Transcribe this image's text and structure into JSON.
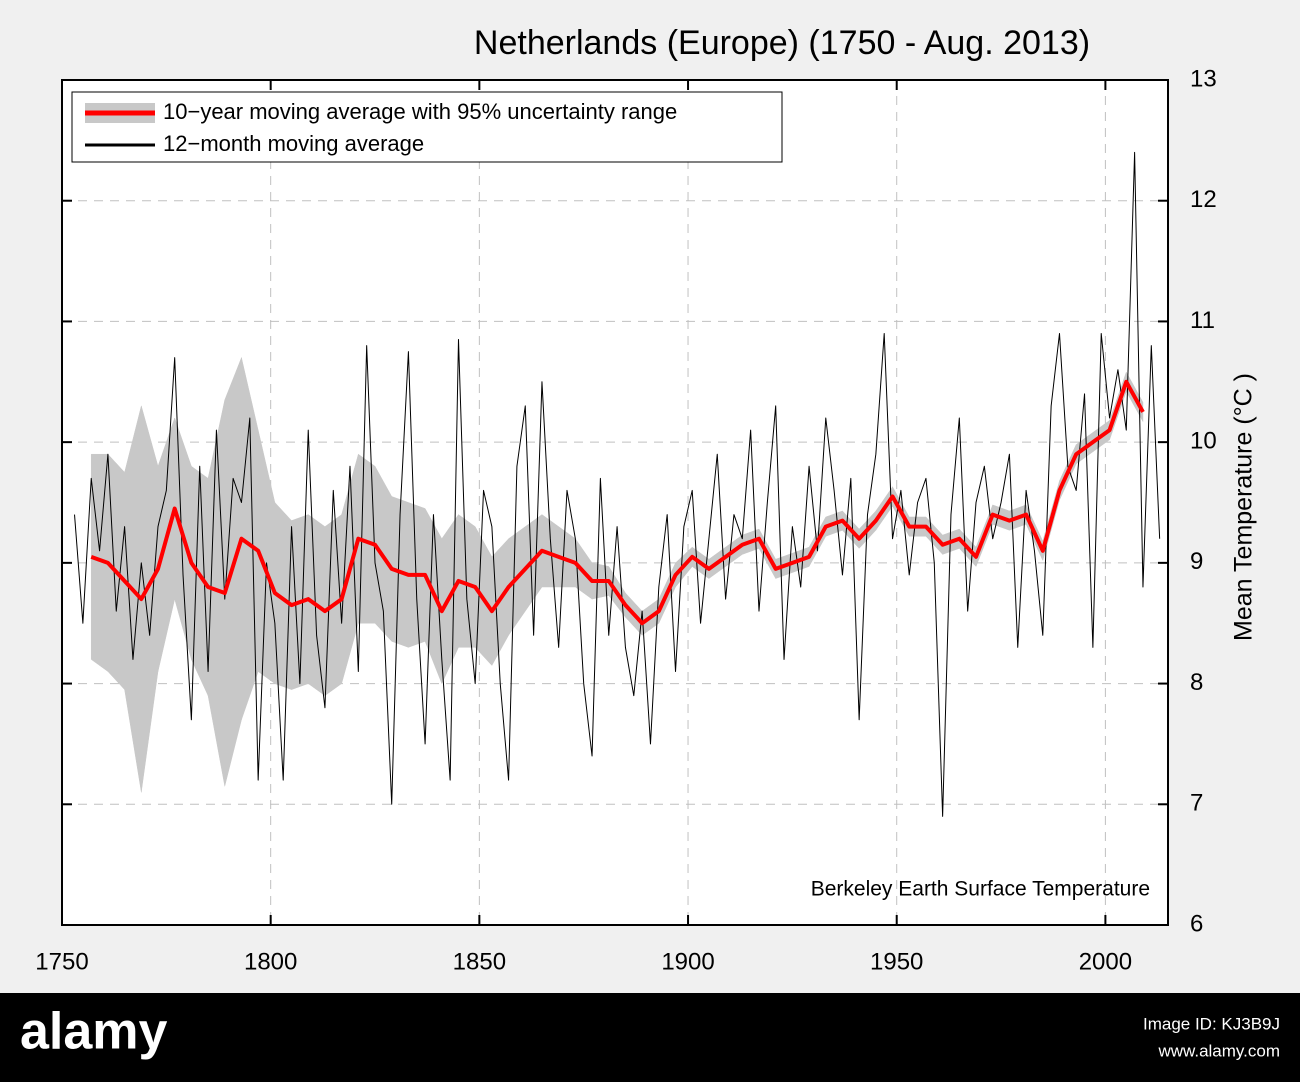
{
  "chart_data": {
    "type": "line",
    "title": "Netherlands (Europe) (1750 - Aug. 2013)",
    "ylabel": "Mean Temperature (°C )",
    "annotation": "Berkeley Earth Surface Temperature",
    "xlim": [
      1750,
      2015
    ],
    "ylim": [
      6,
      13
    ],
    "xticks": [
      1750,
      1800,
      1850,
      1900,
      1950,
      2000
    ],
    "yticks": [
      6,
      7,
      8,
      9,
      10,
      11,
      12,
      13
    ],
    "grid": true,
    "legend": "upper left",
    "y_axis_side": "right",
    "series": [
      {
        "name": "10−year moving average with 95% uncertainty range",
        "color": "#ff0000",
        "band_color": "#c8c8c8",
        "x": [
          1757,
          1761,
          1765,
          1769,
          1773,
          1777,
          1781,
          1785,
          1789,
          1793,
          1797,
          1801,
          1805,
          1809,
          1813,
          1817,
          1821,
          1825,
          1829,
          1833,
          1837,
          1841,
          1845,
          1849,
          1853,
          1857,
          1861,
          1865,
          1869,
          1873,
          1877,
          1881,
          1885,
          1889,
          1893,
          1897,
          1901,
          1905,
          1909,
          1913,
          1917,
          1921,
          1925,
          1929,
          1933,
          1937,
          1941,
          1945,
          1949,
          1953,
          1957,
          1961,
          1965,
          1969,
          1973,
          1977,
          1981,
          1985,
          1989,
          1993,
          1997,
          2001,
          2005,
          2009
        ],
        "values": [
          9.05,
          9.0,
          8.85,
          8.7,
          8.95,
          9.45,
          9.0,
          8.8,
          8.75,
          9.2,
          9.1,
          8.75,
          8.65,
          8.7,
          8.6,
          8.7,
          9.2,
          9.15,
          8.95,
          8.9,
          8.9,
          8.6,
          8.85,
          8.8,
          8.6,
          8.8,
          8.95,
          9.1,
          9.05,
          9.0,
          8.85,
          8.85,
          8.65,
          8.5,
          8.6,
          8.9,
          9.05,
          8.95,
          9.05,
          9.15,
          9.2,
          8.95,
          9.0,
          9.05,
          9.3,
          9.35,
          9.2,
          9.35,
          9.55,
          9.3,
          9.3,
          9.15,
          9.2,
          9.05,
          9.4,
          9.35,
          9.4,
          9.1,
          9.6,
          9.9,
          10.0,
          10.1,
          10.5,
          10.25
        ],
        "uncertainty": [
          0.85,
          0.9,
          0.9,
          1.6,
          0.85,
          0.75,
          0.8,
          0.9,
          1.6,
          1.5,
          1.0,
          0.75,
          0.7,
          0.7,
          0.7,
          0.7,
          0.7,
          0.65,
          0.6,
          0.6,
          0.55,
          0.6,
          0.55,
          0.5,
          0.45,
          0.4,
          0.35,
          0.3,
          0.25,
          0.2,
          0.15,
          0.12,
          0.1,
          0.1,
          0.1,
          0.1,
          0.08,
          0.08,
          0.08,
          0.08,
          0.08,
          0.08,
          0.08,
          0.08,
          0.08,
          0.08,
          0.08,
          0.08,
          0.08,
          0.08,
          0.08,
          0.08,
          0.08,
          0.08,
          0.08,
          0.08,
          0.08,
          0.08,
          0.08,
          0.08,
          0.08,
          0.08,
          0.08,
          0.08
        ]
      },
      {
        "name": "12−month moving average",
        "color": "#000000",
        "x": [
          1753,
          1755,
          1757,
          1759,
          1761,
          1763,
          1765,
          1767,
          1769,
          1771,
          1773,
          1775,
          1777,
          1779,
          1781,
          1783,
          1785,
          1787,
          1789,
          1791,
          1793,
          1795,
          1797,
          1799,
          1801,
          1803,
          1805,
          1807,
          1809,
          1811,
          1813,
          1815,
          1817,
          1819,
          1821,
          1823,
          1825,
          1827,
          1829,
          1831,
          1833,
          1835,
          1837,
          1839,
          1841,
          1843,
          1845,
          1847,
          1849,
          1851,
          1853,
          1855,
          1857,
          1859,
          1861,
          1863,
          1865,
          1867,
          1869,
          1871,
          1873,
          1875,
          1877,
          1879,
          1881,
          1883,
          1885,
          1887,
          1889,
          1891,
          1893,
          1895,
          1897,
          1899,
          1901,
          1903,
          1905,
          1907,
          1909,
          1911,
          1913,
          1915,
          1917,
          1919,
          1921,
          1923,
          1925,
          1927,
          1929,
          1931,
          1933,
          1935,
          1937,
          1939,
          1941,
          1943,
          1945,
          1947,
          1949,
          1951,
          1953,
          1955,
          1957,
          1959,
          1961,
          1963,
          1965,
          1967,
          1969,
          1971,
          1973,
          1975,
          1977,
          1979,
          1981,
          1983,
          1985,
          1987,
          1989,
          1991,
          1993,
          1995,
          1997,
          1999,
          2001,
          2003,
          2005,
          2007,
          2009,
          2011,
          2013
        ],
        "values": [
          9.4,
          8.5,
          9.7,
          9.1,
          9.9,
          8.6,
          9.3,
          8.2,
          9.0,
          8.4,
          9.3,
          9.6,
          10.7,
          8.9,
          7.7,
          9.8,
          8.1,
          10.1,
          8.7,
          9.7,
          9.5,
          10.2,
          7.2,
          9.0,
          8.5,
          7.2,
          9.3,
          8.0,
          10.1,
          8.4,
          7.8,
          9.6,
          8.5,
          9.8,
          8.1,
          10.8,
          9.0,
          8.6,
          7.0,
          9.4,
          10.75,
          8.7,
          7.5,
          9.4,
          8.2,
          7.2,
          10.85,
          8.7,
          8.0,
          9.6,
          9.3,
          8.0,
          7.2,
          9.8,
          10.3,
          8.4,
          10.5,
          9.2,
          8.3,
          9.6,
          9.2,
          8.0,
          7.4,
          9.7,
          8.4,
          9.3,
          8.3,
          7.9,
          8.6,
          7.5,
          8.8,
          9.4,
          8.1,
          9.3,
          9.6,
          8.5,
          9.2,
          9.9,
          8.7,
          9.4,
          9.2,
          10.1,
          8.6,
          9.5,
          10.3,
          8.2,
          9.3,
          8.8,
          9.8,
          9.1,
          10.2,
          9.6,
          8.9,
          9.7,
          7.7,
          9.4,
          9.9,
          10.9,
          9.2,
          9.6,
          8.9,
          9.5,
          9.7,
          9.0,
          6.9,
          9.4,
          10.2,
          8.6,
          9.5,
          9.8,
          9.2,
          9.5,
          9.9,
          8.3,
          9.6,
          9.1,
          8.4,
          10.3,
          10.9,
          9.8,
          9.6,
          10.4,
          8.3,
          10.9,
          10.2,
          10.6,
          10.1,
          12.4,
          8.8,
          10.8,
          9.2
        ]
      }
    ]
  },
  "watermark": {
    "brand": "alamy",
    "image_id": "Image ID: KJ3B9J",
    "url": "www.alamy.com"
  }
}
